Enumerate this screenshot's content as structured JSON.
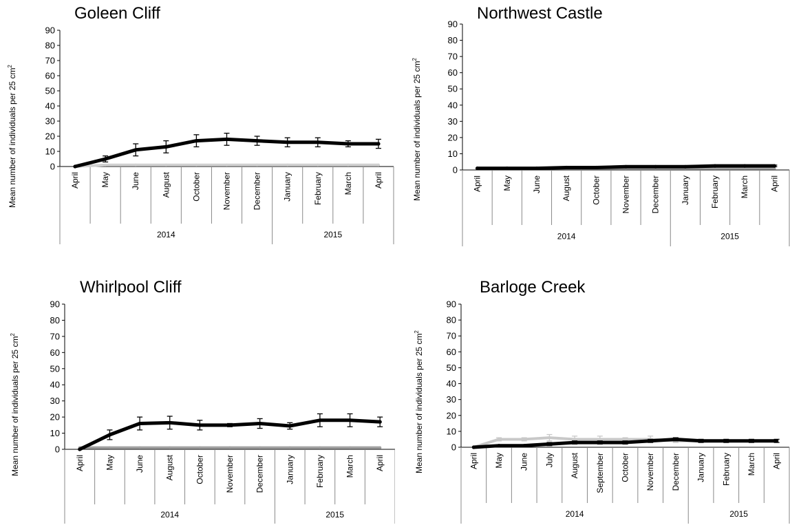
{
  "ylabel_main": "Mean number of individuals per 25 cm",
  "ylabel_sup": "2",
  "chart_data": [
    {
      "type": "line",
      "title": "Goleen Cliff",
      "ylim": [
        0,
        90
      ],
      "yticks": [
        0,
        10,
        20,
        30,
        40,
        50,
        60,
        70,
        80,
        90
      ],
      "categories": [
        "April",
        "May",
        "June",
        "August",
        "October",
        "November",
        "December",
        "January",
        "February",
        "March",
        "April"
      ],
      "year_groups": [
        {
          "label": "2014",
          "count": 7
        },
        {
          "label": "2015",
          "count": 4
        }
      ],
      "series": [
        {
          "color": "#000000",
          "values": [
            0,
            5,
            11,
            13,
            17,
            18,
            17,
            16,
            16,
            15,
            15
          ],
          "errors": [
            0,
            2,
            4,
            4,
            4,
            4,
            3,
            3,
            3,
            2,
            3
          ]
        },
        {
          "color": "#d0d0d0",
          "values": [
            0,
            1,
            1,
            1,
            1,
            1,
            1,
            1,
            1,
            1,
            1
          ],
          "errors": [
            0,
            0,
            0,
            0,
            0,
            0,
            0,
            0,
            0,
            0,
            0
          ]
        }
      ]
    },
    {
      "type": "line",
      "title": "Northwest Castle",
      "ylim": [
        0,
        90
      ],
      "yticks": [
        0,
        10,
        20,
        30,
        40,
        50,
        60,
        70,
        80,
        90
      ],
      "categories": [
        "April",
        "May",
        "June",
        "August",
        "October",
        "November",
        "December",
        "January",
        "February",
        "March",
        "April"
      ],
      "year_groups": [
        {
          "label": "2014",
          "count": 7
        },
        {
          "label": "2015",
          "count": 4
        }
      ],
      "series": [
        {
          "color": "#000000",
          "values": [
            1,
            1,
            1,
            1.5,
            1.5,
            2,
            2,
            2,
            2.5,
            2.5,
            2.5
          ],
          "errors": [
            0,
            0,
            0,
            0,
            0,
            0,
            0,
            0,
            0,
            0,
            0.5
          ]
        },
        {
          "color": "#a0a0a0",
          "values": [
            1,
            1,
            1,
            1,
            1,
            1,
            1,
            1,
            1,
            1,
            1
          ],
          "errors": [
            0,
            0,
            0,
            0,
            0,
            0,
            0,
            0,
            0,
            0,
            0
          ]
        }
      ]
    },
    {
      "type": "line",
      "title": "Whirlpool Cliff",
      "ylim": [
        0,
        90
      ],
      "yticks": [
        0,
        10,
        20,
        30,
        40,
        50,
        60,
        70,
        80,
        90
      ],
      "categories": [
        "April",
        "May",
        "June",
        "August",
        "October",
        "November",
        "December",
        "January",
        "February",
        "March",
        "April"
      ],
      "year_groups": [
        {
          "label": "2014",
          "count": 7
        },
        {
          "label": "2015",
          "count": 4
        }
      ],
      "series": [
        {
          "color": "#000000",
          "values": [
            0,
            9,
            16,
            16.5,
            15,
            15,
            16,
            14.5,
            18,
            18,
            17
          ],
          "errors": [
            0,
            3,
            4,
            4,
            3,
            1,
            3,
            2,
            4,
            4,
            3
          ]
        },
        {
          "color": "#a0a0a0",
          "values": [
            1,
            1,
            1,
            1,
            1,
            1,
            1,
            1,
            1,
            1,
            1
          ],
          "errors": [
            0,
            0,
            0,
            0,
            0,
            0,
            0,
            0,
            0,
            0,
            0
          ]
        }
      ]
    },
    {
      "type": "line",
      "title": "Barloge Creek",
      "ylim": [
        0,
        90
      ],
      "yticks": [
        0,
        10,
        20,
        30,
        40,
        50,
        60,
        70,
        80,
        90
      ],
      "categories": [
        "April",
        "May",
        "June",
        "July",
        "August",
        "September",
        "October",
        "November",
        "December",
        "January",
        "February",
        "March",
        "April"
      ],
      "year_groups": [
        {
          "label": "2014",
          "count": 9
        },
        {
          "label": "2015",
          "count": 4
        }
      ],
      "series": [
        {
          "color": "#000000",
          "values": [
            0,
            1,
            1,
            2,
            3,
            3,
            3,
            4,
            5,
            4,
            4,
            4,
            4
          ],
          "errors": [
            0,
            0,
            0,
            1,
            1,
            1,
            1,
            1,
            1,
            1,
            1,
            1,
            1
          ]
        },
        {
          "color": "#c8c8c8",
          "values": [
            0,
            5,
            5,
            6,
            5,
            5,
            5,
            5,
            4,
            4,
            4,
            4,
            4
          ],
          "errors": [
            0,
            1,
            1,
            2,
            2,
            2,
            1,
            2,
            1,
            1,
            1,
            1,
            1
          ]
        }
      ]
    }
  ]
}
